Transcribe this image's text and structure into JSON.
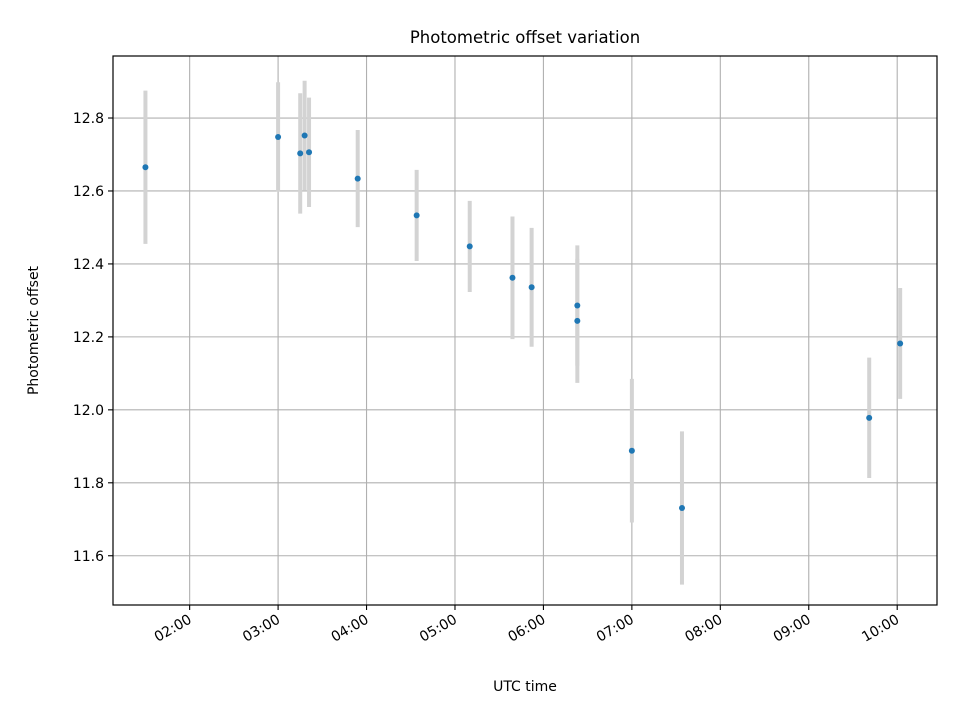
{
  "chart_data": {
    "type": "scatter",
    "title": "Photometric offset variation",
    "xlabel": "UTC time",
    "ylabel": "Photometric offset",
    "xlim": [
      "01:08",
      "10:27"
    ],
    "ylim": [
      11.465,
      12.97
    ],
    "grid": true,
    "x_ticks": [
      "02:00",
      "03:00",
      "04:00",
      "05:00",
      "06:00",
      "07:00",
      "08:00",
      "09:00",
      "10:00"
    ],
    "y_ticks": [
      "11.6",
      "11.8",
      "12.0",
      "12.2",
      "12.4",
      "12.6",
      "12.8"
    ],
    "colors": {
      "point": "#1f77b4",
      "errorbar": "#d3d3d3",
      "grid": "#b0b0b0"
    },
    "points": [
      {
        "x": "01:30",
        "y": 12.665,
        "yerr": 0.21
      },
      {
        "x": "03:00",
        "y": 12.748,
        "yerr": 0.15
      },
      {
        "x": "03:15",
        "y": 12.703,
        "yerr": 0.165
      },
      {
        "x": "03:18",
        "y": 12.752,
        "yerr": 0.15
      },
      {
        "x": "03:21",
        "y": 12.706,
        "yerr": 0.15
      },
      {
        "x": "03:54",
        "y": 12.634,
        "yerr": 0.133
      },
      {
        "x": "04:34",
        "y": 12.533,
        "yerr": 0.125
      },
      {
        "x": "05:10",
        "y": 12.448,
        "yerr": 0.125
      },
      {
        "x": "05:39",
        "y": 12.362,
        "yerr": 0.168
      },
      {
        "x": "05:52",
        "y": 12.336,
        "yerr": 0.163
      },
      {
        "x": "06:23",
        "y": 12.286,
        "yerr": 0.165
      },
      {
        "x": "06:23",
        "y": 12.244,
        "yerr": 0.17
      },
      {
        "x": "07:00",
        "y": 11.888,
        "yerr": 0.197
      },
      {
        "x": "07:34",
        "y": 11.731,
        "yerr": 0.21
      },
      {
        "x": "09:41",
        "y": 11.978,
        "yerr": 0.165
      },
      {
        "x": "10:02",
        "y": 12.182,
        "yerr": 0.152
      }
    ]
  }
}
